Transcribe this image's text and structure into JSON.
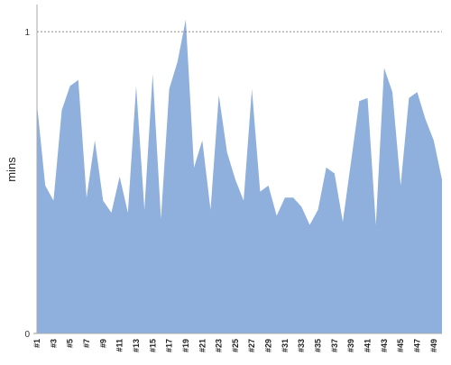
{
  "chart_data": {
    "type": "area",
    "y_label": "mins",
    "categories": [
      "#1",
      null,
      "#3",
      null,
      "#5",
      null,
      "#7",
      null,
      "#9",
      null,
      "#11",
      null,
      "#13",
      null,
      "#15",
      null,
      "#17",
      null,
      "#19",
      null,
      "#21",
      null,
      "#23",
      null,
      "#25",
      null,
      "#27",
      null,
      "#29",
      null,
      "#31",
      null,
      "#33",
      null,
      "#35",
      null,
      "#37",
      null,
      "#39",
      null,
      "#41",
      null,
      "#43",
      null,
      "#45",
      null,
      "#47",
      null,
      "#49",
      null
    ],
    "values": [
      0.76,
      0.49,
      0.44,
      0.74,
      0.82,
      0.84,
      0.45,
      0.64,
      0.44,
      0.4,
      0.52,
      0.4,
      0.82,
      0.41,
      0.86,
      0.38,
      0.81,
      0.9,
      1.04,
      0.55,
      0.64,
      0.41,
      0.79,
      0.6,
      0.51,
      0.44,
      0.81,
      0.47,
      0.49,
      0.39,
      0.45,
      0.45,
      0.42,
      0.36,
      0.41,
      0.55,
      0.53,
      0.37,
      0.57,
      0.77,
      0.78,
      0.36,
      0.88,
      0.8,
      0.49,
      0.78,
      0.8,
      0.71,
      0.64,
      0.51
    ],
    "color": "#8fb0dc",
    "ylim": [
      0,
      1.09
    ],
    "yticks": [
      0,
      1
    ],
    "grid": true
  }
}
